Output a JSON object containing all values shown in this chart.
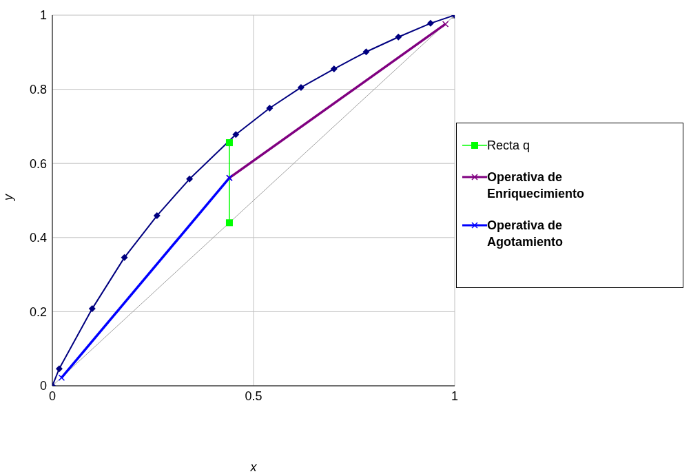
{
  "chart_data": {
    "type": "line",
    "xlabel": "x",
    "ylabel": "y",
    "xlim": [
      0,
      1
    ],
    "ylim": [
      0,
      1
    ],
    "xticks": [
      0,
      0.5,
      1
    ],
    "yticks": [
      0,
      0.2,
      0.4,
      0.6,
      0.8,
      1
    ],
    "grid": true,
    "legend": "right",
    "line_style": "solid",
    "series": [
      {
        "color": "#a0a0a0",
        "marker": "triangle",
        "x": [
          0,
          1
        ],
        "values": [
          0,
          1
        ]
      },
      {
        "color": "#000080",
        "marker": "diamond",
        "x": [
          0,
          0.017,
          0.099,
          0.179,
          0.26,
          0.341,
          0.456,
          0.54,
          0.618,
          0.7,
          0.78,
          0.86,
          0.94,
          1
        ],
        "values": [
          0,
          0.046,
          0.208,
          0.346,
          0.459,
          0.558,
          0.678,
          0.749,
          0.805,
          0.855,
          0.901,
          0.941,
          0.978,
          1
        ]
      },
      {
        "name": "Recta q",
        "color": "#00ff00",
        "marker": "square",
        "x": [
          0.44,
          0.44
        ],
        "values": [
          0.656,
          0.44
        ]
      },
      {
        "name": "Operativa de Enriquecimiento",
        "color": "#800080",
        "marker": "cross",
        "x": [
          0.44,
          0.977
        ],
        "values": [
          0.561,
          0.976
        ]
      },
      {
        "name": "Operativa de Agotamiento",
        "color": "#0000ff",
        "marker": "cross",
        "x": [
          0.023,
          0.44
        ],
        "values": [
          0.022,
          0.561
        ]
      }
    ]
  }
}
